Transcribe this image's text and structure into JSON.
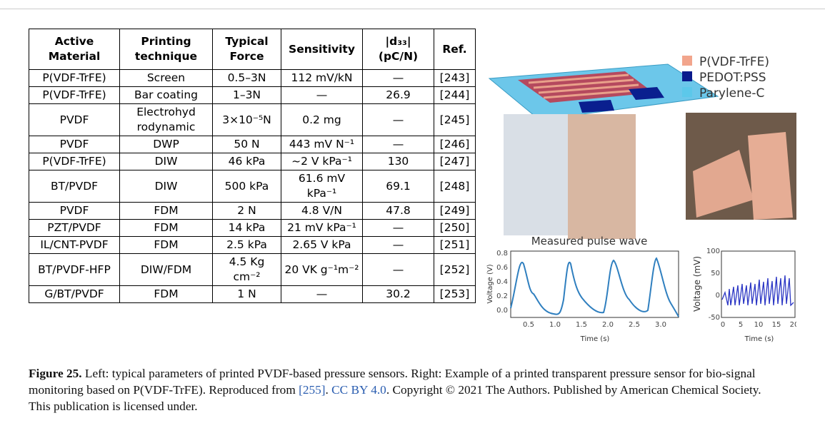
{
  "table": {
    "header": [
      "Active Material",
      "Printing technique",
      "Typical Force",
      "Sensitivity",
      "|d₃₃| (pC/N)",
      "Ref."
    ],
    "rows": [
      [
        "P(VDF-TrFE)",
        "Screen",
        "0.5–3N",
        "112 mV/kN",
        "—",
        "[243]"
      ],
      [
        "P(VDF-TrFE)",
        "Bar coating",
        "1–3N",
        "—",
        "26.9",
        "[244]"
      ],
      [
        "PVDF",
        "Electrohyd rodynamic",
        "3×10⁻⁵N",
        "0.2 mg",
        "—",
        "[245]"
      ],
      [
        "PVDF",
        "DWP",
        "50 N",
        "443 mV N⁻¹",
        "—",
        "[246]"
      ],
      [
        "P(VDF-TrFE)",
        "DIW",
        "46 kPa",
        "~2 V kPa⁻¹",
        "130",
        "[247]"
      ],
      [
        "BT/PVDF",
        "DIW",
        "500 kPa",
        "61.6 mV kPa⁻¹",
        "69.1",
        "[248]"
      ],
      [
        "PVDF",
        "FDM",
        "2 N",
        "4.8 V/N",
        "47.8",
        "[249]"
      ],
      [
        "PZT/PVDF",
        "FDM",
        "14 kPa",
        "21 mV kPa⁻¹",
        "—",
        "[250]"
      ],
      [
        "IL/CNT-PVDF",
        "FDM",
        "2.5 kPa",
        "2.65 V kPa",
        "—",
        "[251]"
      ],
      [
        "BT/PVDF-HFP",
        "DIW/FDM",
        "4.5 Kg cm⁻²",
        "20 VK g⁻¹m⁻²",
        "—",
        "[252]"
      ],
      [
        "G/BT/PVDF",
        "FDM",
        "1 N",
        "—",
        "30.2",
        "[253]"
      ]
    ]
  },
  "figure_panel": {
    "legend": [
      "P(VDF-TrFE)",
      "PEDOT:PSS",
      "Parylene-C"
    ],
    "pulse_chart": {
      "title": "Measured pulse wave",
      "y_label": "Voltage (V)",
      "x_label": "Time (s)",
      "yticks": [
        "0.8",
        "0.6",
        "0.4",
        "0.2",
        "0.0"
      ],
      "xticks": [
        "0.5",
        "1.0",
        "1.5",
        "2.0",
        "2.5",
        "3.0"
      ]
    },
    "signal_chart": {
      "y_label": "Voltage (mV)",
      "x_label": "Time (s)",
      "yticks": [
        "100",
        "50",
        "0",
        "-50"
      ],
      "xticks": [
        "0",
        "5",
        "10",
        "15",
        "20"
      ]
    }
  },
  "caption": {
    "label": "Figure 25.",
    "text_1": " Left: typical parameters of printed PVDF-based pressure sensors. Right: Example of a printed transparent pressure sensor for bio-signal monitoring based on P(VDF-TrFE). Reproduced from ",
    "ref": "[255]",
    "text_2": ". ",
    "license": "CC BY 4.0",
    "text_3": ". Copyright © 2021 The Authors. Published by American Chemical Society. This publication is licensed under."
  }
}
